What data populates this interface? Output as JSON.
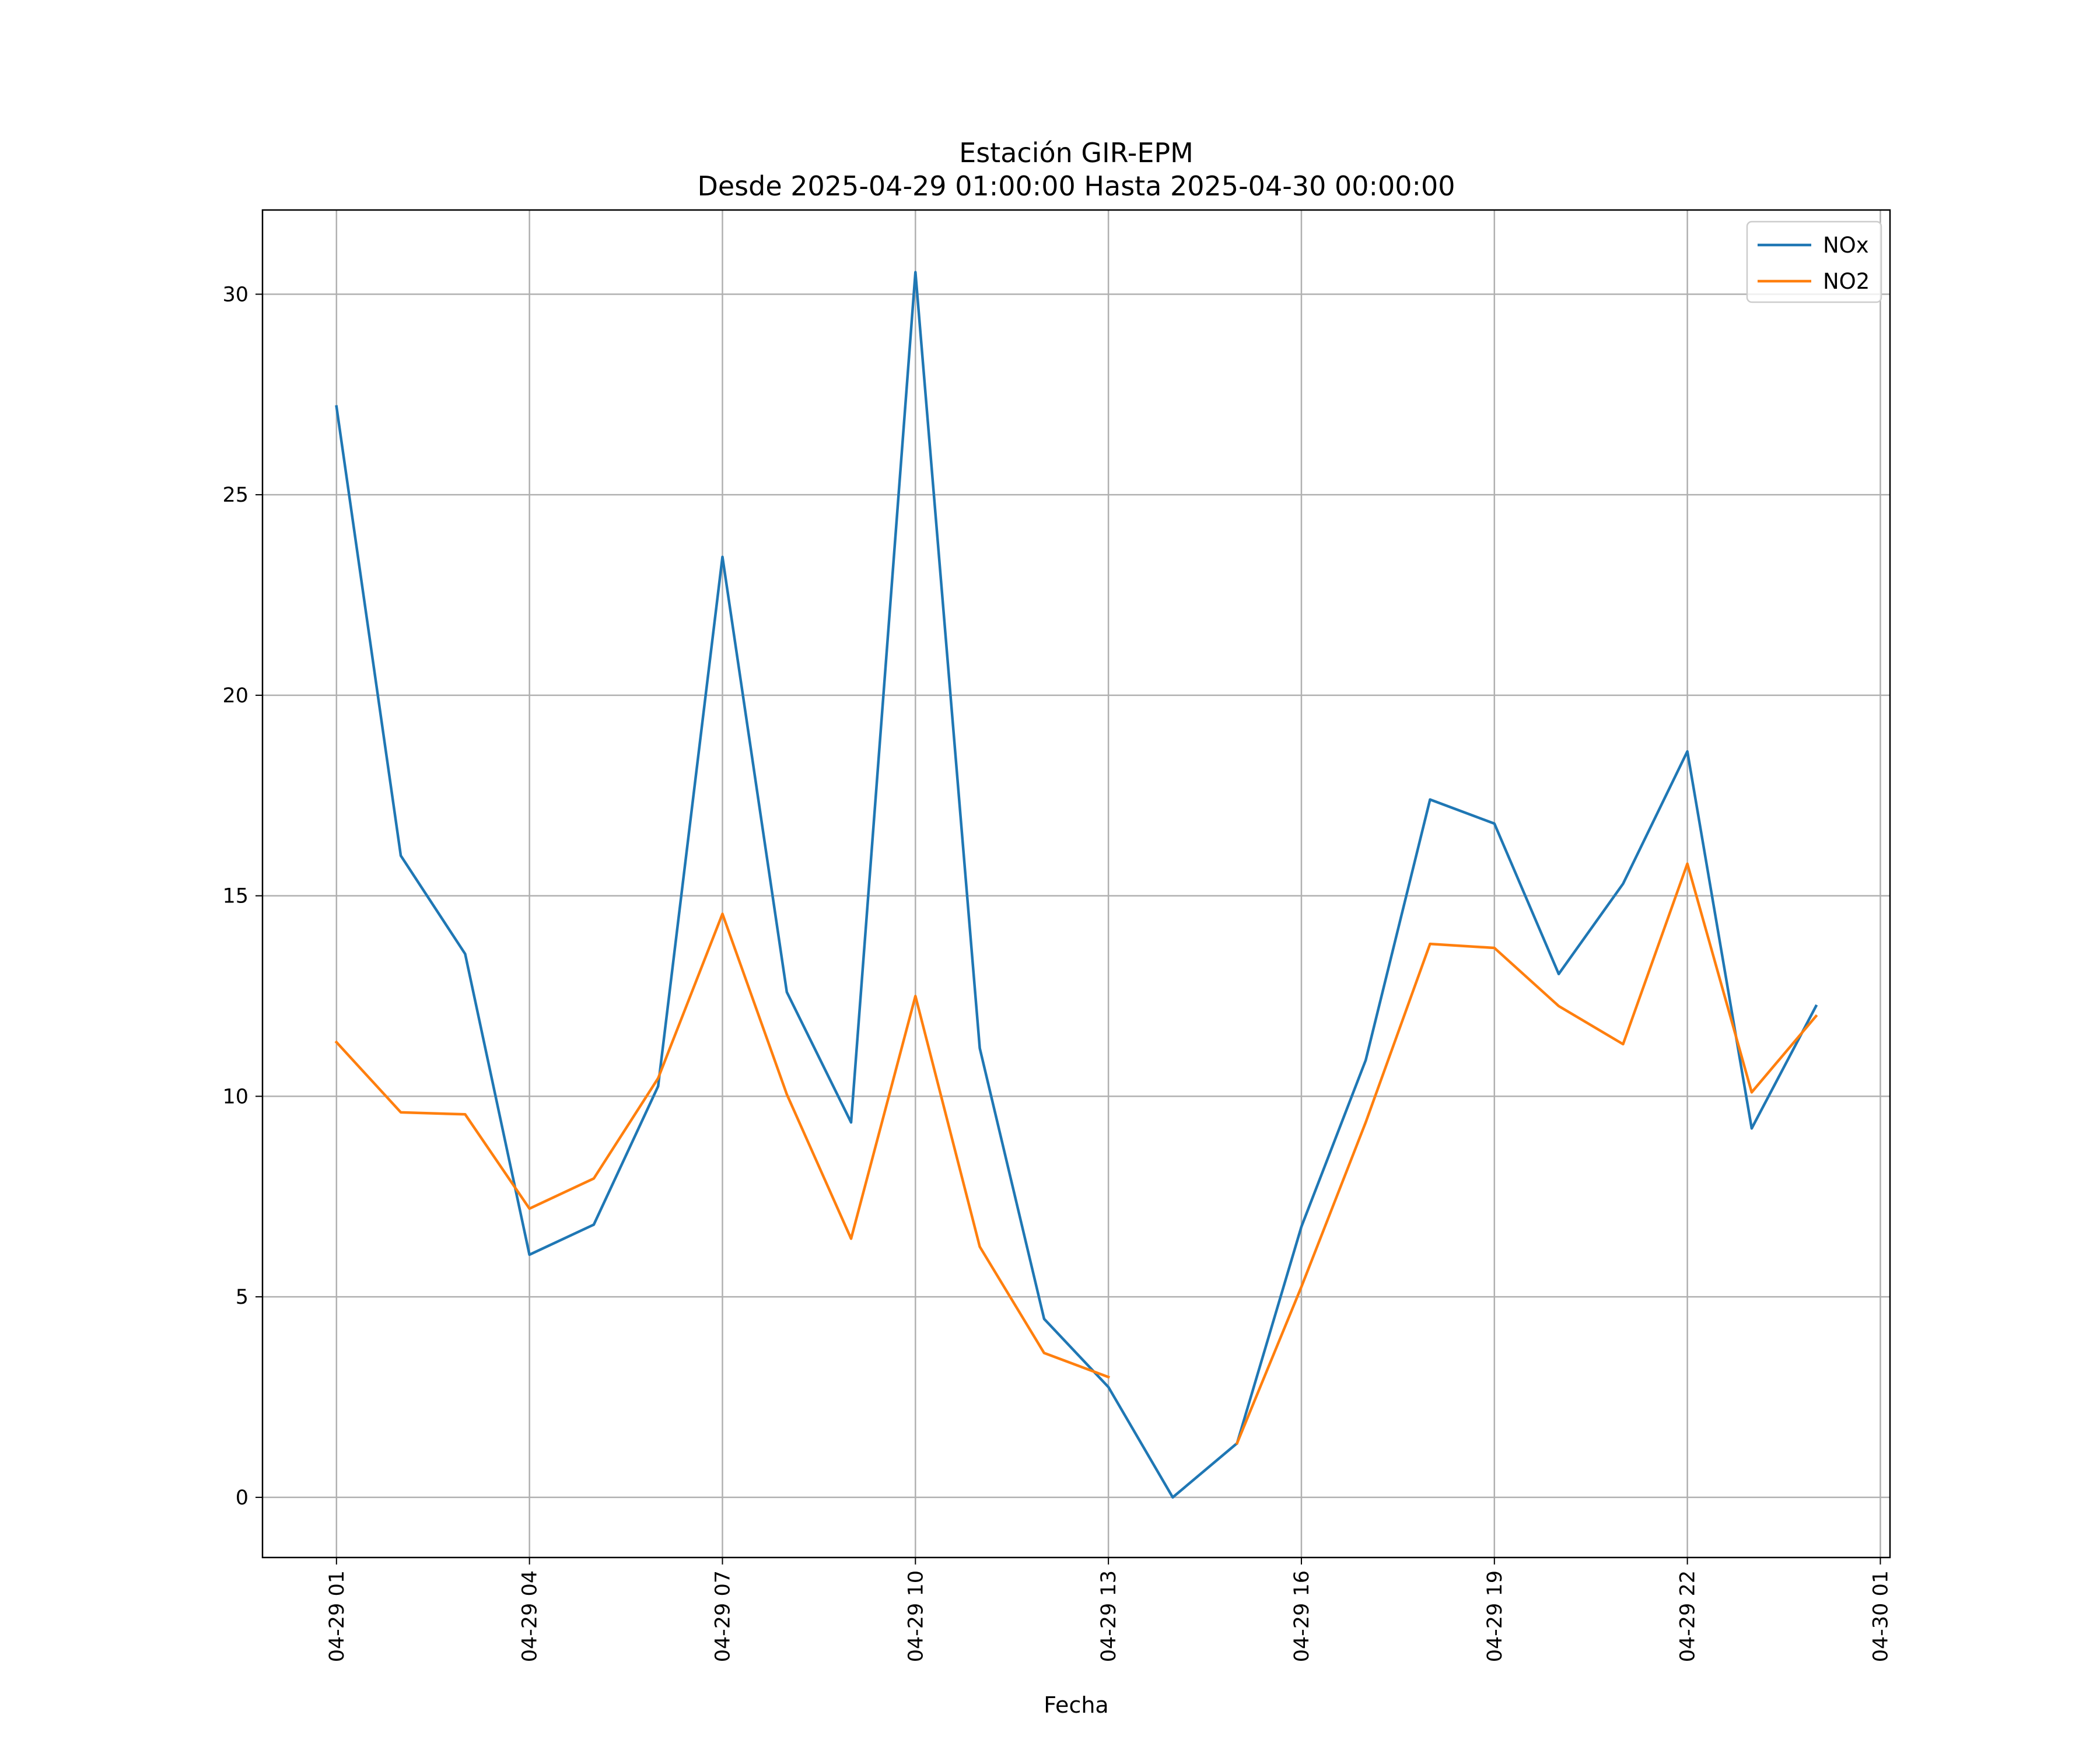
{
  "chart_data": {
    "type": "line",
    "title": "Estación GIR-EPM",
    "subtitle": "Desde 2025-04-29 01:00:00 Hasta 2025-04-30 00:00:00",
    "xlabel": "Fecha",
    "ylabel": "",
    "x_ticks": [
      "04-29 01",
      "04-29 04",
      "04-29 07",
      "04-29 10",
      "04-29 13",
      "04-29 16",
      "04-29 19",
      "04-29 22",
      "04-30 01"
    ],
    "y_ticks": [
      "0",
      "5",
      "10",
      "15",
      "20",
      "25",
      "30"
    ],
    "xlim": [
      "2025-04-28 23:51",
      "2025-04-30 01:09"
    ],
    "ylim": [
      -1.5,
      32.1
    ],
    "grid": true,
    "legend_position": "top-right",
    "x": [
      "2025-04-29 01:00",
      "2025-04-29 02:00",
      "2025-04-29 03:00",
      "2025-04-29 04:00",
      "2025-04-29 05:00",
      "2025-04-29 06:00",
      "2025-04-29 07:00",
      "2025-04-29 08:00",
      "2025-04-29 09:00",
      "2025-04-29 10:00",
      "2025-04-29 11:00",
      "2025-04-29 12:00",
      "2025-04-29 13:00",
      "2025-04-29 14:00",
      "2025-04-29 15:00",
      "2025-04-29 16:00",
      "2025-04-29 17:00",
      "2025-04-29 18:00",
      "2025-04-29 19:00",
      "2025-04-29 20:00",
      "2025-04-29 21:00",
      "2025-04-29 22:00",
      "2025-04-29 23:00",
      "2025-04-30 00:00"
    ],
    "series": [
      {
        "name": "NOx",
        "color": "#1f77b4",
        "values": [
          27.2,
          16.0,
          13.55,
          6.05,
          6.8,
          10.25,
          23.45,
          12.6,
          9.35,
          30.55,
          11.2,
          4.45,
          2.75,
          0.0,
          1.35,
          6.75,
          10.9,
          17.4,
          16.8,
          13.05,
          15.3,
          18.6,
          9.2,
          12.25
        ]
      },
      {
        "name": "NO2",
        "color": "#ff7f0e",
        "values": [
          11.35,
          9.6,
          9.55,
          7.2,
          7.95,
          10.45,
          14.55,
          10.05,
          6.45,
          12.5,
          6.25,
          3.6,
          3.0,
          null,
          1.35,
          5.25,
          9.35,
          13.8,
          13.7,
          12.25,
          11.3,
          15.8,
          10.1,
          12.0
        ]
      }
    ]
  }
}
